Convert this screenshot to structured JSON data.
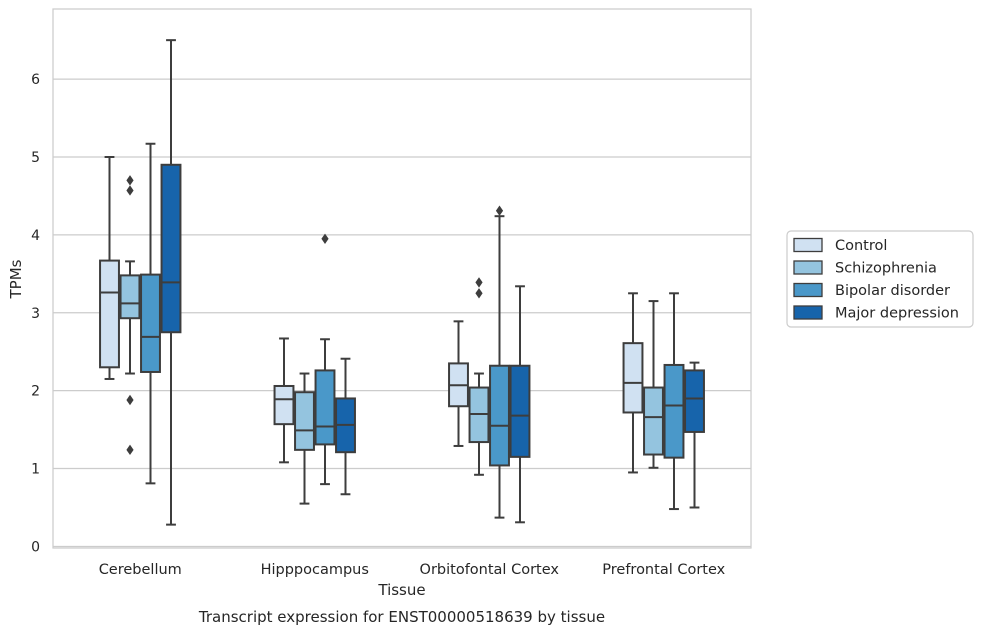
{
  "chart_data": {
    "type": "box",
    "title": "",
    "caption": "Transcript expression for ENST00000518639 by tissue",
    "xlabel": "Tissue",
    "ylabel": "TPMs",
    "ylim": [
      -0.02,
      6.9
    ],
    "yticks": [
      0,
      1,
      2,
      3,
      4,
      5,
      6
    ],
    "grid": true,
    "legend_position": "right",
    "categories": [
      "Cerebellum",
      "Hipppocampus",
      "Orbitofontal Cortex",
      "Prefrontal Cortex"
    ],
    "series": [
      {
        "name": "Control",
        "color": "#d0e1f2",
        "boxes": [
          {
            "whisker_low": 2.15,
            "q1": 2.3,
            "median": 3.26,
            "q3": 3.67,
            "whisker_high": 5.0,
            "outliers": []
          },
          {
            "whisker_low": 1.08,
            "q1": 1.57,
            "median": 1.89,
            "q3": 2.06,
            "whisker_high": 2.67,
            "outliers": []
          },
          {
            "whisker_low": 1.29,
            "q1": 1.8,
            "median": 2.07,
            "q3": 2.35,
            "whisker_high": 2.89,
            "outliers": []
          },
          {
            "whisker_low": 0.95,
            "q1": 1.72,
            "median": 2.1,
            "q3": 2.61,
            "whisker_high": 3.25,
            "outliers": []
          }
        ]
      },
      {
        "name": "Schizophrenia",
        "color": "#94c4df",
        "boxes": [
          {
            "whisker_low": 2.22,
            "q1": 2.93,
            "median": 3.12,
            "q3": 3.48,
            "whisker_high": 3.66,
            "outliers": [
              4.7,
              4.57,
              1.88,
              1.24
            ]
          },
          {
            "whisker_low": 0.55,
            "q1": 1.24,
            "median": 1.49,
            "q3": 1.98,
            "whisker_high": 2.22,
            "outliers": []
          },
          {
            "whisker_low": 0.92,
            "q1": 1.34,
            "median": 1.7,
            "q3": 2.04,
            "whisker_high": 2.22,
            "outliers": [
              3.39,
              3.25
            ]
          },
          {
            "whisker_low": 1.01,
            "q1": 1.18,
            "median": 1.66,
            "q3": 2.04,
            "whisker_high": 3.15,
            "outliers": []
          }
        ]
      },
      {
        "name": "Bipolar disorder",
        "color": "#4a98c9",
        "boxes": [
          {
            "whisker_low": 0.81,
            "q1": 2.24,
            "median": 2.69,
            "q3": 3.49,
            "whisker_high": 5.17,
            "outliers": []
          },
          {
            "whisker_low": 0.8,
            "q1": 1.31,
            "median": 1.54,
            "q3": 2.26,
            "whisker_high": 2.66,
            "outliers": [
              3.95
            ]
          },
          {
            "whisker_low": 0.37,
            "q1": 1.04,
            "median": 1.55,
            "q3": 2.32,
            "whisker_high": 4.24,
            "outliers": [
              4.31
            ]
          },
          {
            "whisker_low": 0.48,
            "q1": 1.14,
            "median": 1.81,
            "q3": 2.33,
            "whisker_high": 3.25,
            "outliers": []
          }
        ]
      },
      {
        "name": "Major depression",
        "color": "#1764ab",
        "boxes": [
          {
            "whisker_low": 0.28,
            "q1": 2.75,
            "median": 3.39,
            "q3": 4.9,
            "whisker_high": 6.5,
            "outliers": []
          },
          {
            "whisker_low": 0.67,
            "q1": 1.21,
            "median": 1.56,
            "q3": 1.9,
            "whisker_high": 2.41,
            "outliers": []
          },
          {
            "whisker_low": 0.31,
            "q1": 1.15,
            "median": 1.68,
            "q3": 2.32,
            "whisker_high": 3.34,
            "outliers": []
          },
          {
            "whisker_low": 0.5,
            "q1": 1.47,
            "median": 1.9,
            "q3": 2.26,
            "whisker_high": 2.36,
            "outliers": []
          }
        ]
      }
    ]
  }
}
